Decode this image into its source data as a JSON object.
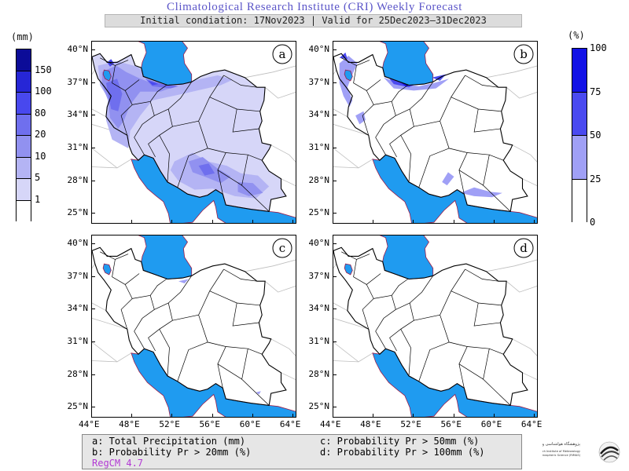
{
  "header": {
    "title": "Climatological Research Institute (CRI) Weekly Forecast",
    "subtitle": "Initial condiation: 17Nov2023 | Valid for 25Dec2023–31Dec2023"
  },
  "colorbar_precip": {
    "unit": "(mm)",
    "levels": [
      "150",
      "100",
      "80",
      "20",
      "10",
      "5",
      "1"
    ],
    "colors": [
      "#0c0c98",
      "#2626d6",
      "#4848ee",
      "#6f6fee",
      "#9191f0",
      "#b4b4f4",
      "#d6d6f8",
      "#ffffff"
    ]
  },
  "colorbar_prob": {
    "unit": "(%)",
    "levels": [
      "100",
      "75",
      "50",
      "25",
      "0"
    ],
    "colors": [
      "#1212e6",
      "#4a4af0",
      "#a0a0f6",
      "#ffffff"
    ]
  },
  "panels": [
    {
      "letter": "a"
    },
    {
      "letter": "b"
    },
    {
      "letter": "c"
    },
    {
      "letter": "d"
    }
  ],
  "axes": {
    "lat_labels": [
      "40°N",
      "37°N",
      "34°N",
      "31°N",
      "28°N",
      "25°N"
    ],
    "lon_labels": [
      "44°E",
      "48°E",
      "52°E",
      "56°E",
      "60°E",
      "64°E"
    ]
  },
  "legend": {
    "a": "a: Total Precipitation (mm)",
    "b": "b: Probability Pr > 20mm (%)",
    "c": "c: Probability Pr > 50mm (%)",
    "d": "d: Probability Pr > 100mm (%)",
    "model": "RegCM 4.7"
  },
  "logo": {
    "name_fa": "پژوهشگاه هواشناسی و علوم جو",
    "name_en_1": "Research Institute of Meteorology",
    "name_en_2": "and Atmospheric Science (RIMAS)"
  },
  "map_style": {
    "water": "#1f9bf0",
    "border": "#000000",
    "coast": "#9c1c4a"
  }
}
